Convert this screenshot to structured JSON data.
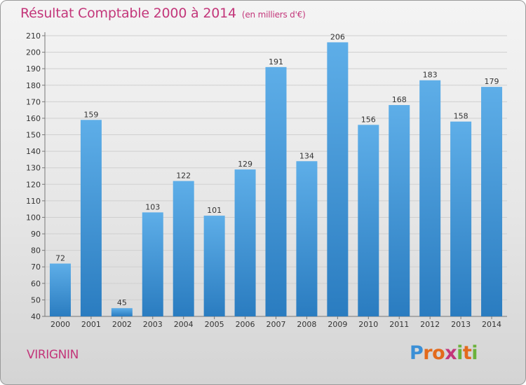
{
  "header": {
    "title": "Résultat Comptable 2000 à 2014",
    "subtitle": "(en milliers d'€)"
  },
  "footer": {
    "commune": "VIRIGNIN",
    "brand_letters": [
      "P",
      "r",
      "o",
      "x",
      "i",
      "t",
      "i"
    ],
    "brand_colors": [
      "#3a8fd6",
      "#e36a1c",
      "#e36a1c",
      "#c3367a",
      "#6bb23c",
      "#e36a1c",
      "#6bb23c"
    ]
  },
  "colors": {
    "bar_light": "#5eaee8",
    "bar_dark": "#2a7cc0",
    "title": "#c3367a",
    "grid": "#cfcfcf"
  },
  "chart_data": {
    "type": "bar",
    "title": "Résultat Comptable 2000 à 2014",
    "subtitle": "(en milliers d'€)",
    "categories": [
      "2000",
      "2001",
      "2002",
      "2003",
      "2004",
      "2005",
      "2006",
      "2007",
      "2008",
      "2009",
      "2010",
      "2011",
      "2012",
      "2013",
      "2014"
    ],
    "values": [
      72,
      159,
      45,
      103,
      122,
      101,
      129,
      191,
      134,
      206,
      156,
      168,
      183,
      158,
      179
    ],
    "ylim": [
      40,
      210
    ],
    "yticks": [
      40,
      50,
      60,
      70,
      80,
      90,
      100,
      110,
      120,
      130,
      140,
      150,
      160,
      170,
      180,
      190,
      200,
      210
    ],
    "xlabel": "",
    "ylabel": "",
    "grid": true,
    "data_labels": true
  }
}
